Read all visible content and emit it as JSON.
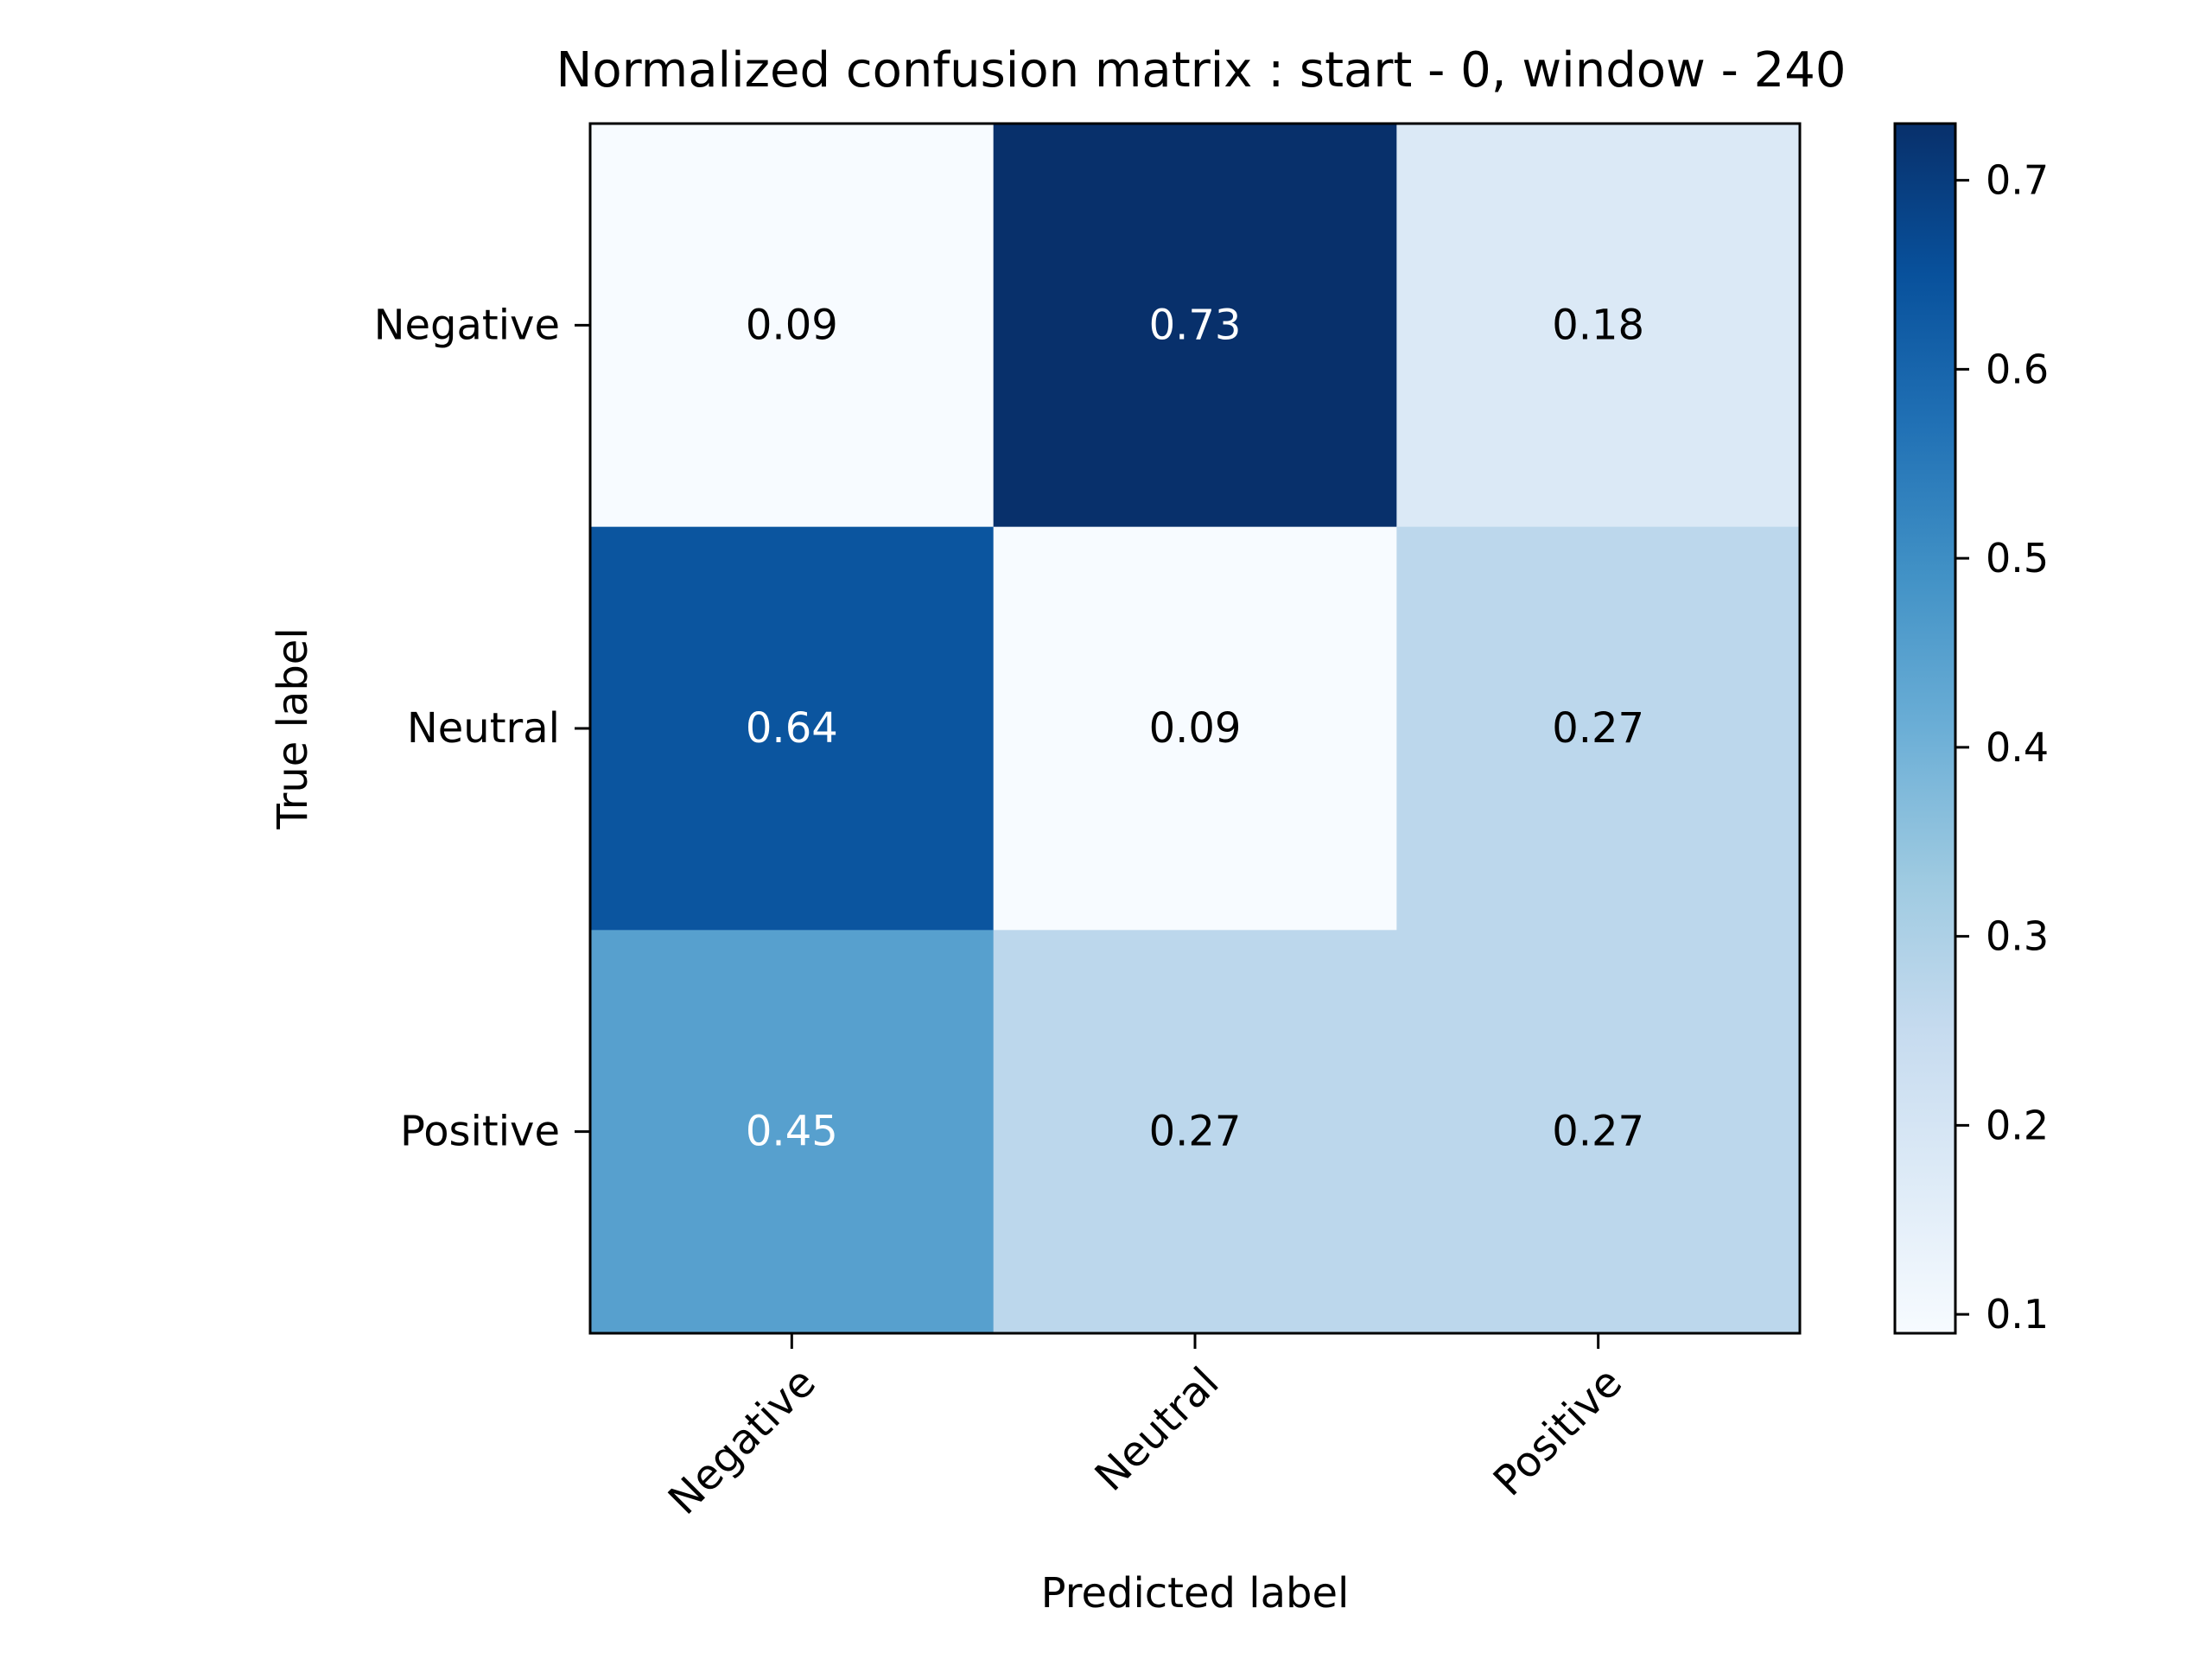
{
  "chart_data": {
    "type": "heatmap",
    "title": "Normalized confusion matrix : start - 0, window - 240",
    "xlabel": "Predicted label",
    "ylabel": "True label",
    "x_categories": [
      "Negative",
      "Neutral",
      "Positive"
    ],
    "y_categories": [
      "Negative",
      "Neutral",
      "Positive"
    ],
    "values": [
      [
        0.09,
        0.73,
        0.18
      ],
      [
        0.64,
        0.09,
        0.27
      ],
      [
        0.45,
        0.27,
        0.27
      ]
    ],
    "cell_labels": [
      [
        "0.09",
        "0.73",
        "0.18"
      ],
      [
        "0.64",
        "0.09",
        "0.27"
      ],
      [
        "0.45",
        "0.27",
        "0.27"
      ]
    ],
    "colormap": "Blues",
    "vmin": 0.09,
    "vmax": 0.73,
    "colorbar_ticks": [
      "0.1",
      "0.2",
      "0.3",
      "0.4",
      "0.5",
      "0.6",
      "0.7"
    ],
    "colorbar_tick_values": [
      0.1,
      0.2,
      0.3,
      0.4,
      0.5,
      0.6,
      0.7
    ],
    "colorbar": true,
    "grid": false
  }
}
